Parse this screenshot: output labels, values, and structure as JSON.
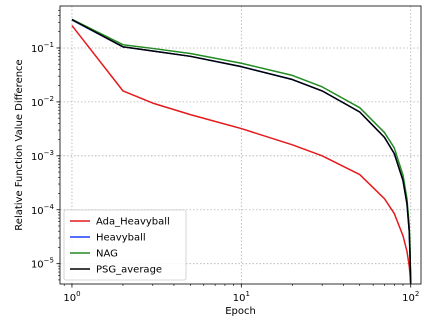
{
  "chart_data": {
    "type": "line",
    "xscale": "log",
    "yscale": "log",
    "xlabel": "Epoch",
    "ylabel": "Relative Function Value Difference",
    "xlim": [
      0.85,
      115
    ],
    "ylim": [
      4.2e-06,
      0.6
    ],
    "grid": true,
    "legend_position": "lower-left",
    "x_ticks": [
      {
        "base": "10",
        "exp": "0",
        "value": 1
      },
      {
        "base": "10",
        "exp": "1",
        "value": 10
      },
      {
        "base": "10",
        "exp": "2",
        "value": 100
      }
    ],
    "y_ticks": [
      {
        "base": "10",
        "exp": "−5",
        "value": 1e-05
      },
      {
        "base": "10",
        "exp": "−4",
        "value": 0.0001
      },
      {
        "base": "10",
        "exp": "−3",
        "value": 0.001
      },
      {
        "base": "10",
        "exp": "−2",
        "value": 0.01
      },
      {
        "base": "10",
        "exp": "−1",
        "value": 0.1
      }
    ],
    "series": [
      {
        "name": "Ada_Heavyball",
        "color": "#e41a1c",
        "x": [
          1,
          2,
          3,
          5,
          10,
          20,
          30,
          50,
          70,
          80,
          90,
          95,
          98,
          99,
          100
        ],
        "y": [
          0.26,
          0.016,
          0.0095,
          0.0058,
          0.0032,
          0.0016,
          0.001,
          0.00045,
          0.00016,
          8.5e-05,
          3.3e-05,
          1.7e-05,
          9e-06,
          6.5e-06,
          4.3e-06
        ]
      },
      {
        "name": "Heavyball",
        "color": "#1f3fff",
        "x": [
          1,
          2,
          3,
          5,
          10,
          20,
          30,
          50,
          70,
          80,
          90,
          95,
          98,
          99,
          100
        ],
        "y": [
          0.33,
          0.105,
          0.088,
          0.07,
          0.045,
          0.026,
          0.016,
          0.0065,
          0.0022,
          0.0011,
          0.00035,
          0.00013,
          4e-05,
          1.5e-05,
          4.3e-06
        ]
      },
      {
        "name": "NAG",
        "color": "#228b22",
        "x": [
          1,
          2,
          3,
          5,
          10,
          20,
          30,
          50,
          70,
          80,
          90,
          95,
          98,
          99,
          100
        ],
        "y": [
          0.34,
          0.115,
          0.098,
          0.079,
          0.052,
          0.031,
          0.019,
          0.0078,
          0.0027,
          0.0014,
          0.00044,
          0.00016,
          5e-05,
          2e-05,
          4.3e-06
        ]
      },
      {
        "name": "PSG_average",
        "color": "#000000",
        "x": [
          1,
          2,
          3,
          5,
          10,
          20,
          30,
          50,
          70,
          80,
          90,
          95,
          98,
          99,
          100
        ],
        "y": [
          0.335,
          0.105,
          0.088,
          0.07,
          0.045,
          0.026,
          0.016,
          0.0065,
          0.0022,
          0.0011,
          0.00035,
          0.00013,
          4e-05,
          1.5e-05,
          4.3e-06
        ]
      }
    ]
  }
}
